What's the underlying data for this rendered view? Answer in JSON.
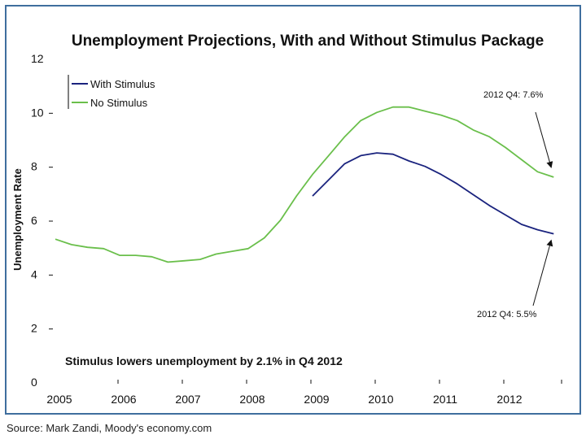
{
  "colors": {
    "frame": "#3f6e9e",
    "with_stimulus": "#1a237e",
    "no_stimulus": "#6abf4b",
    "text": "#111111"
  },
  "chart_data": {
    "type": "line",
    "title": "Unemployment Projections, With and Without Stimulus Package",
    "ylabel": "Unemployment Rate",
    "xlabel": "",
    "ylim": [
      0,
      12
    ],
    "yticks": [
      "0",
      "2",
      "4",
      "6",
      "8",
      "10",
      "12"
    ],
    "xlim": [
      2005,
      2013
    ],
    "xticks": [
      "2005",
      "2006",
      "2007",
      "2008",
      "2009",
      "2010",
      "2011",
      "2012"
    ],
    "grid": false,
    "legend_position": "top-left",
    "series": [
      {
        "name": "With Stimulus",
        "color": "#1a237e",
        "x": [
          2009.0,
          2009.25,
          2009.5,
          2009.75,
          2010.0,
          2010.25,
          2010.5,
          2010.75,
          2011.0,
          2011.25,
          2011.5,
          2011.75,
          2012.0,
          2012.25,
          2012.5,
          2012.75
        ],
        "values": [
          6.9,
          7.5,
          8.1,
          8.4,
          8.5,
          8.45,
          8.2,
          8.0,
          7.7,
          7.35,
          6.95,
          6.55,
          6.2,
          5.85,
          5.65,
          5.5
        ]
      },
      {
        "name": "No Stimulus",
        "color": "#6abf4b",
        "x": [
          2005.0,
          2005.25,
          2005.5,
          2005.75,
          2006.0,
          2006.25,
          2006.5,
          2006.75,
          2007.0,
          2007.25,
          2007.5,
          2007.75,
          2008.0,
          2008.25,
          2008.5,
          2008.75,
          2009.0,
          2009.25,
          2009.5,
          2009.75,
          2010.0,
          2010.25,
          2010.5,
          2010.75,
          2011.0,
          2011.25,
          2011.5,
          2011.75,
          2012.0,
          2012.25,
          2012.5,
          2012.75
        ],
        "values": [
          5.3,
          5.1,
          5.0,
          4.95,
          4.7,
          4.7,
          4.65,
          4.45,
          4.5,
          4.55,
          4.75,
          4.85,
          4.95,
          5.35,
          6.0,
          6.9,
          7.7,
          8.4,
          9.1,
          9.7,
          10.0,
          10.2,
          10.2,
          10.05,
          9.9,
          9.7,
          9.35,
          9.1,
          8.7,
          8.25,
          7.8,
          7.6
        ]
      }
    ],
    "annotations": [
      {
        "text": "2012 Q4: 7.6%",
        "series": "No Stimulus",
        "x": 2012.75,
        "y": 7.6
      },
      {
        "text": "2012 Q4: 5.5%",
        "series": "With Stimulus",
        "x": 2012.75,
        "y": 5.5
      }
    ],
    "note": "Stimulus lowers unemployment by 2.1% in Q4 2012"
  },
  "source": "Source: Mark Zandi, Moody's economy.com"
}
